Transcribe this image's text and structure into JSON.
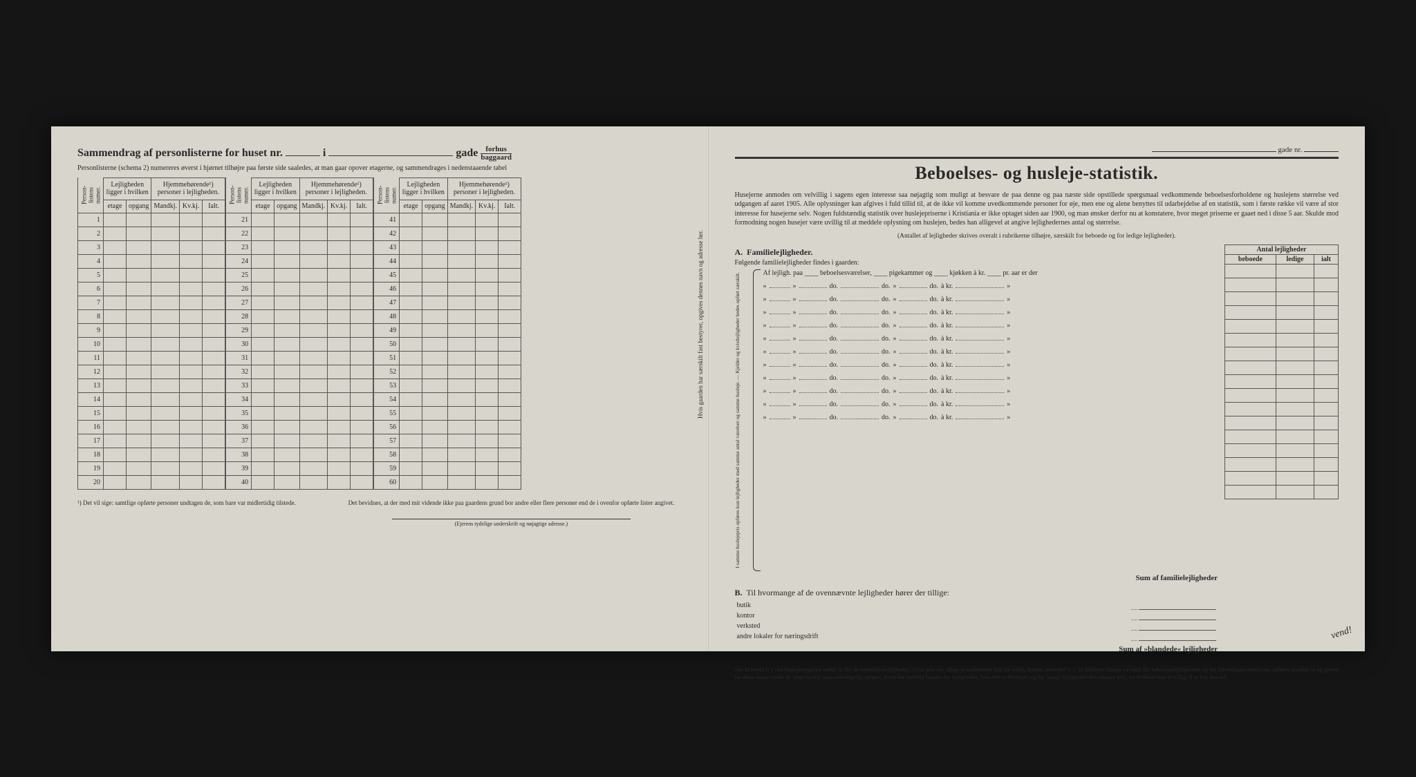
{
  "background_color": "#1a1a1a",
  "paper_color": "#d8d5cc",
  "text_color": "#2a2a2a",
  "left": {
    "title_prefix": "Sammendrag af personlisterne for huset nr.",
    "title_mid": "i",
    "title_suffix": "gade",
    "fraction_top": "forhus",
    "fraction_bottom": "baggaard",
    "subtitle": "Personlisterne (schema 2) numereres øverst i hjørnet tilhøjre paa første side saaledes, at man gaar opover etagerne, og sammendrages i nedenstaaende tabel",
    "col_personlist": "Person-listens numer.",
    "col_lejlighed": "Lejligheden ligger i hvilken",
    "col_hjemme": "Hjemmehørende¹) personer i lejligheden.",
    "sub_etage": "etage",
    "sub_opgang": "opgang",
    "sub_mandkj": "Mandkj.",
    "sub_kvkj": "Kv.kj.",
    "sub_ialt": "Ialt.",
    "footnote1": "¹) Det vil sige: samtlige opførte personer undtagen de, som bare var midlertidig tilstede.",
    "footnote2": "Det bevidnes, at der med mit vidende ikke paa gaardens grund bor andre eller flere personer end de i ovenfor opførte lister angivet.",
    "signature": "(Ejerens tydelige underskrift og nøjagtige adresse.)",
    "side_note": "Hvis gaarden har særskilt fast bestyrer, opgives dennes navn og adresse her.",
    "ranges": [
      [
        1,
        20
      ],
      [
        21,
        40
      ],
      [
        41,
        60
      ]
    ]
  },
  "right": {
    "gade_label": "gade nr.",
    "title": "Beboelses- og husleje-statistik.",
    "intro": "Husejerne anmodes om velvillig i sagens egen interesse saa nøjagtig som muligt at besvare de paa denne og paa næste side opstillede spørgsmaal vedkommende beboelsesforholdene og huslejens størrelse ved udgangen af aaret 1905. Alle oplysninger kan afgives i fuld tillid til, at de ikke vil komme uvedkommende personer for øje, men ene og alene benyttes til udarbejdelse af en statistik, som i første række vil være af stor interesse for husejerne selv. Nogen fuldstændig statistik over huslejepriserne i Kristiania er ikke optaget siden aar 1900, og man ønsker derfor nu at konstatere, hvor meget priserne er gaaet ned i disse 5 aar. Skulde mod formodning nogen husejer være uvillig til at meddele oplysning om huslejen, bedes han alligevel at angive lejlighedernes antal og størrelse.",
    "intro_note": "(Antallet af lejligheder skrives overalt i rubrikerne tilhøjre, særskilt for beboede og for ledige lejligheder).",
    "A_label": "A.",
    "A_title": "Familielejligheder.",
    "A_sub": "Følgende familielejligheder findes i gaarden:",
    "brace_side": "I samme huslejepris opføres kun lejligheder med samme antal værelser og samme husleje. — Kjelder og kvistlejligheder bedes opført særskilt.",
    "row_first": "Af lejligh. paa ____ beboelsesværelser, ____ pigekammer og ____ kjøkken à kr. ____ pr. aar er der",
    "ditto_do": "do.",
    "ditto_akr": "à kr.",
    "sumA": "Sum af familielejligheder",
    "B_label": "B.",
    "B_text": "Til hvormange af de ovennævnte lejligheder hører der tillige:",
    "B_items": [
      "butik",
      "kontor",
      "verksted",
      "andre lokaler for næringsdrift"
    ],
    "sumB": "Sum af »blandede« lejligheder",
    "antal_header": "Antal lejligheder",
    "antal_cols": [
      "beboede",
      "ledige",
      "ialt"
    ],
    "antal_rows": 17,
    "footnote": "Sæt et kryds (×) ved huslejeopgaven under A. for de beboelseslejligheder, i hvis pris der tillige er indbefattet leje for butik, kontor, verksted o. l. Er huslejen fastsat særskilt for beboelseslejligheden og for forretningsværelserne, opføres antallet af og prisen for disse sidste under B. Som husleje maa selvfølgelig opføres, hvad der virkelig betales for lejligheden, hvis den er bortlejet, og for ledige lejligheder den nøjeste pris, for hvilken man er villig til at leje den ud.",
    "vend": "vend!"
  }
}
